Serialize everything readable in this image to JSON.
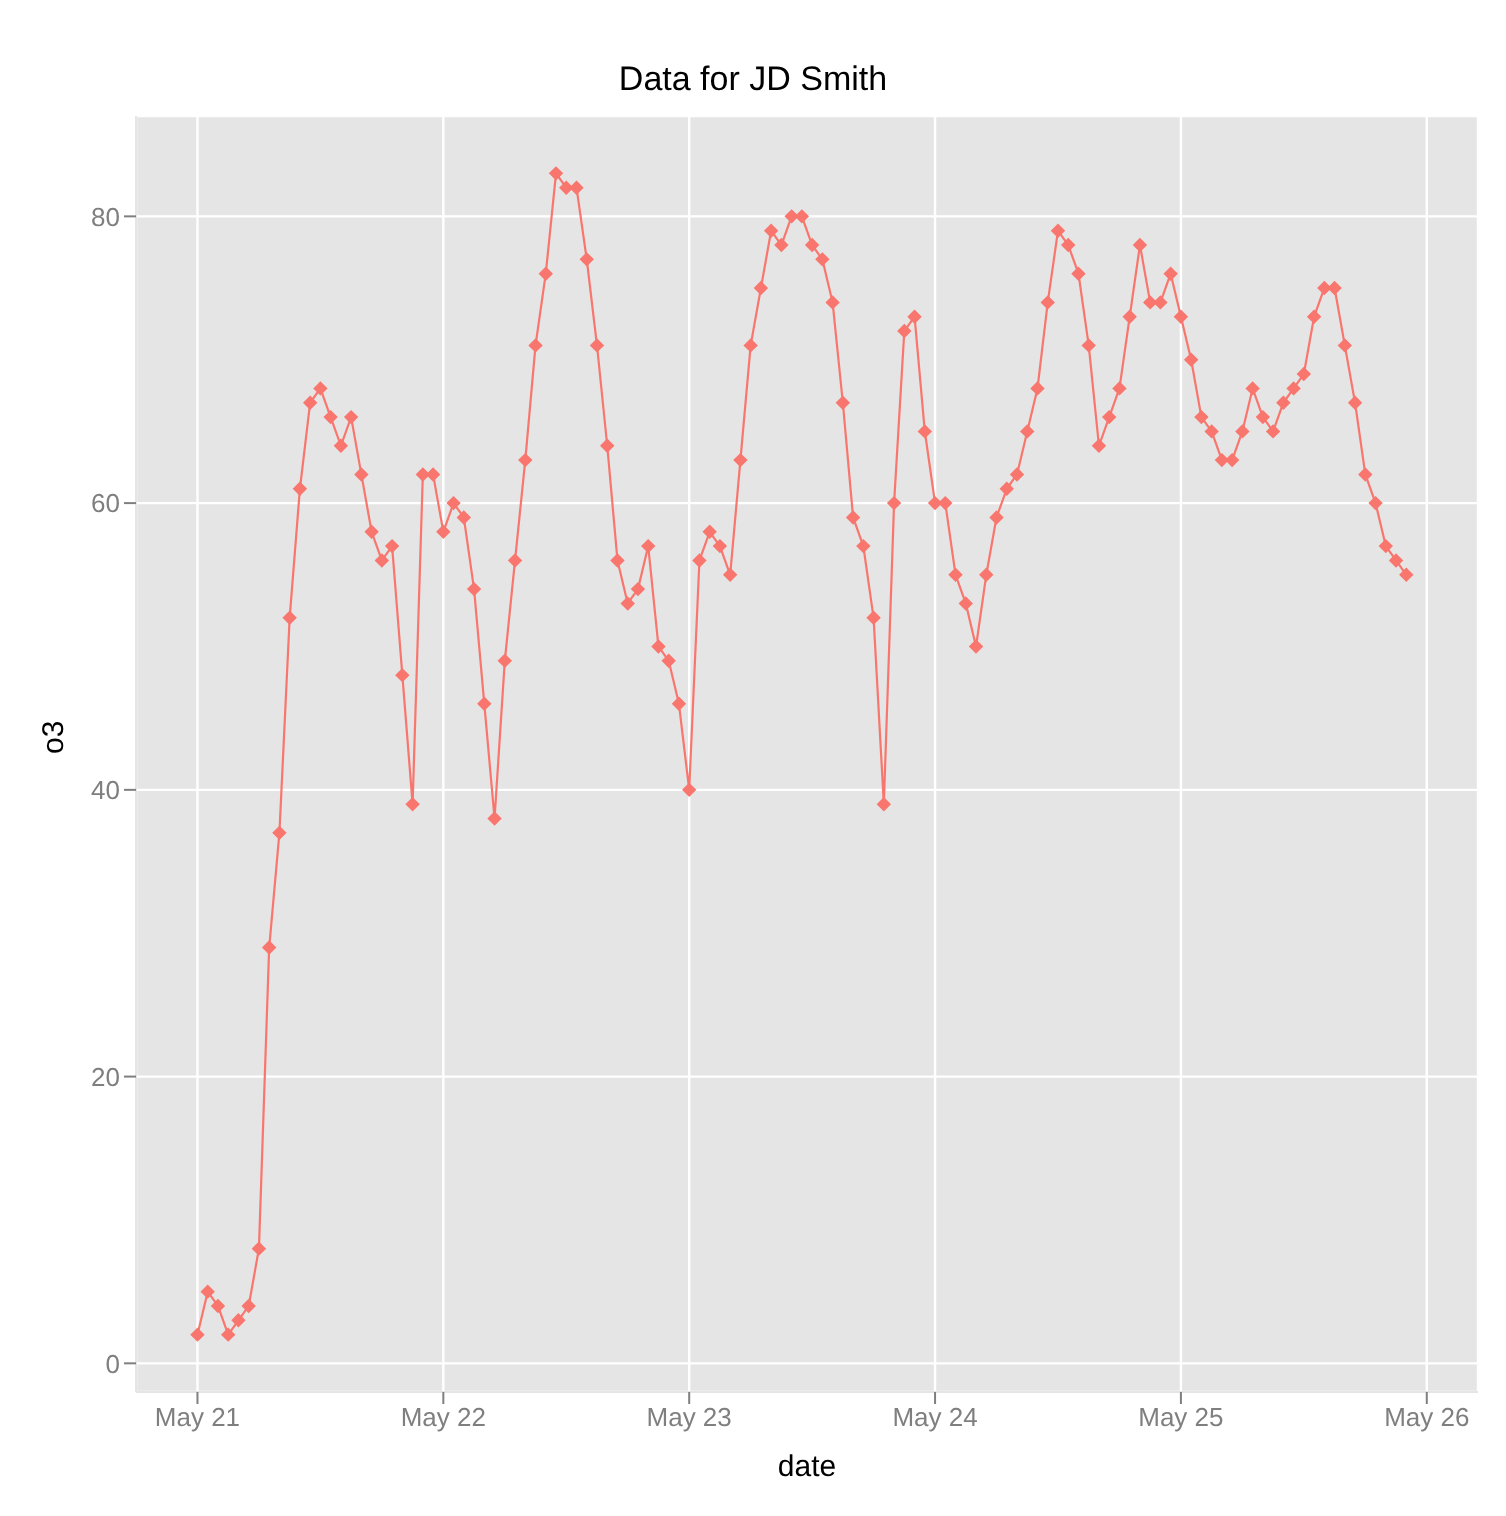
{
  "chart_data": {
    "type": "line",
    "title": "Data for JD Smith",
    "xlabel": "date",
    "ylabel": "o3",
    "x": [
      "--05-21T00:00",
      "--05-21T01:00",
      "--05-21T02:00",
      "--05-21T03:00",
      "--05-21T04:00",
      "--05-21T05:00",
      "--05-21T06:00",
      "--05-21T07:00",
      "--05-21T08:00",
      "--05-21T09:00",
      "--05-21T10:00",
      "--05-21T11:00",
      "--05-21T12:00",
      "--05-21T13:00",
      "--05-21T14:00",
      "--05-21T15:00",
      "--05-21T16:00",
      "--05-21T17:00",
      "--05-21T18:00",
      "--05-21T19:00",
      "--05-21T20:00",
      "--05-21T21:00",
      "--05-21T22:00",
      "--05-21T23:00",
      "--05-22T00:00",
      "--05-22T01:00",
      "--05-22T02:00",
      "--05-22T03:00",
      "--05-22T04:00",
      "--05-22T05:00",
      "--05-22T06:00",
      "--05-22T07:00",
      "--05-22T08:00",
      "--05-22T09:00",
      "--05-22T10:00",
      "--05-22T11:00",
      "--05-22T12:00",
      "--05-22T13:00",
      "--05-22T14:00",
      "--05-22T15:00",
      "--05-22T16:00",
      "--05-22T17:00",
      "--05-22T18:00",
      "--05-22T19:00",
      "--05-22T20:00",
      "--05-22T21:00",
      "--05-22T22:00",
      "--05-22T23:00",
      "--05-23T00:00",
      "--05-23T01:00",
      "--05-23T02:00",
      "--05-23T03:00",
      "--05-23T04:00",
      "--05-23T05:00",
      "--05-23T06:00",
      "--05-23T07:00",
      "--05-23T08:00",
      "--05-23T09:00",
      "--05-23T10:00",
      "--05-23T11:00",
      "--05-23T12:00",
      "--05-23T13:00",
      "--05-23T14:00",
      "--05-23T15:00",
      "--05-23T16:00",
      "--05-23T17:00",
      "--05-23T18:00",
      "--05-23T19:00",
      "--05-23T20:00",
      "--05-23T21:00",
      "--05-23T22:00",
      "--05-23T23:00",
      "--05-24T00:00",
      "--05-24T01:00",
      "--05-24T02:00",
      "--05-24T03:00",
      "--05-24T04:00",
      "--05-24T05:00",
      "--05-24T06:00",
      "--05-24T07:00",
      "--05-24T08:00",
      "--05-24T09:00",
      "--05-24T10:00",
      "--05-24T11:00",
      "--05-24T12:00",
      "--05-24T13:00",
      "--05-24T14:00",
      "--05-24T15:00",
      "--05-24T16:00",
      "--05-24T17:00",
      "--05-24T18:00",
      "--05-24T19:00",
      "--05-24T20:00",
      "--05-24T21:00",
      "--05-24T22:00",
      "--05-24T23:00",
      "--05-25T00:00",
      "--05-25T01:00",
      "--05-25T02:00",
      "--05-25T03:00",
      "--05-25T04:00",
      "--05-25T05:00",
      "--05-25T06:00",
      "--05-25T07:00",
      "--05-25T08:00",
      "--05-25T09:00",
      "--05-25T10:00",
      "--05-25T11:00",
      "--05-25T12:00",
      "--05-25T13:00",
      "--05-25T14:00",
      "--05-25T15:00",
      "--05-25T16:00",
      "--05-25T17:00",
      "--05-25T18:00",
      "--05-25T19:00",
      "--05-25T20:00",
      "--05-25T21:00",
      "--05-25T22:00"
    ],
    "series": [
      {
        "color": "#f8766d",
        "values": [
          2,
          5,
          4,
          2,
          3,
          4,
          8,
          29,
          37,
          52,
          61,
          67,
          68,
          66,
          64,
          66,
          62,
          58,
          56,
          57,
          48,
          39,
          62,
          62,
          58,
          60,
          59,
          54,
          46,
          38,
          49,
          56,
          63,
          71,
          76,
          83,
          82,
          82,
          77,
          71,
          64,
          56,
          53,
          54,
          57,
          50,
          49,
          46,
          40,
          56,
          58,
          57,
          55,
          63,
          71,
          75,
          79,
          78,
          80,
          80,
          78,
          77,
          74,
          67,
          59,
          57,
          52,
          39,
          60,
          72,
          73,
          65,
          60,
          60,
          55,
          53,
          50,
          55,
          59,
          61,
          62,
          65,
          68,
          74,
          79,
          78,
          76,
          71,
          64,
          66,
          68,
          73,
          78,
          74,
          74,
          76,
          73,
          70,
          66,
          65,
          63,
          63,
          65,
          68,
          66,
          65,
          67,
          68,
          69,
          73,
          75,
          75,
          71,
          67,
          62,
          60,
          57,
          56,
          55
        ]
      }
    ],
    "xlim": [
      "--05-20T18:00",
      "--05-26T05:00"
    ],
    "xticks": [
      {
        "value": "--05-21",
        "label": "May 21"
      },
      {
        "value": "--05-22",
        "label": "May 22"
      },
      {
        "value": "--05-23",
        "label": "May 23"
      },
      {
        "value": "--05-24",
        "label": "May 24"
      },
      {
        "value": "--05-25",
        "label": "May 25"
      },
      {
        "value": "--05-26",
        "label": "May 26"
      }
    ],
    "ylim": [
      -2,
      87
    ],
    "yticks": [
      0,
      20,
      40,
      60,
      80
    ],
    "grid": true,
    "marker": "diamond",
    "line_style": "solid"
  }
}
